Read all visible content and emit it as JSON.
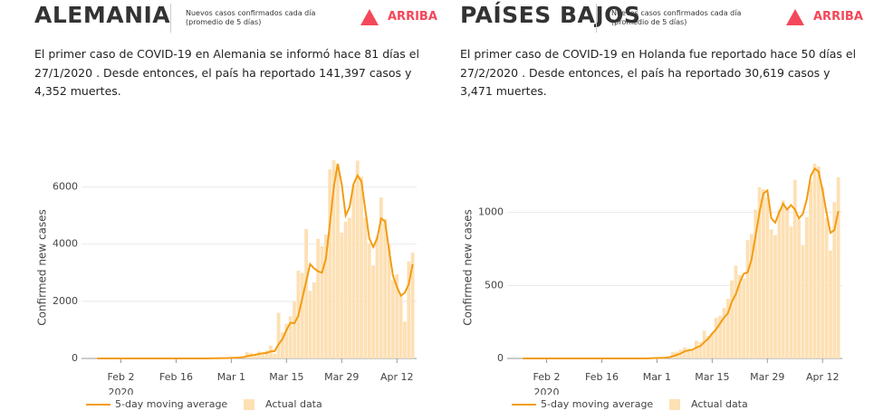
{
  "chart_data": [
    {
      "type": "bar",
      "title": "ALEMANIA",
      "subtitle": "Nuevos casos confirmados cada día (promedio de 5 días)",
      "trend": "ARRIBA",
      "trend_color": "#f4475a",
      "description": "El primer caso de COVID-19 en Alemania se informó hace 81 días el 27/1/2020 . Desde entonces, el país ha reportado 141,397 casos y 4,352 muertes.",
      "y_label": "Confirmed new cases",
      "x_year_label": "2020",
      "x": [
        "2020-01-27",
        "2020-01-28",
        "2020-01-29",
        "2020-01-30",
        "2020-01-31",
        "2020-02-01",
        "2020-02-02",
        "2020-02-03",
        "2020-02-04",
        "2020-02-05",
        "2020-02-06",
        "2020-02-07",
        "2020-02-08",
        "2020-02-09",
        "2020-02-10",
        "2020-02-11",
        "2020-02-12",
        "2020-02-13",
        "2020-02-14",
        "2020-02-15",
        "2020-02-16",
        "2020-02-17",
        "2020-02-18",
        "2020-02-19",
        "2020-02-20",
        "2020-02-21",
        "2020-02-22",
        "2020-02-23",
        "2020-02-24",
        "2020-02-25",
        "2020-02-26",
        "2020-02-27",
        "2020-02-28",
        "2020-02-29",
        "2020-03-01",
        "2020-03-02",
        "2020-03-03",
        "2020-03-04",
        "2020-03-05",
        "2020-03-06",
        "2020-03-07",
        "2020-03-08",
        "2020-03-09",
        "2020-03-10",
        "2020-03-11",
        "2020-03-12",
        "2020-03-13",
        "2020-03-14",
        "2020-03-15",
        "2020-03-16",
        "2020-03-17",
        "2020-03-18",
        "2020-03-19",
        "2020-03-20",
        "2020-03-21",
        "2020-03-22",
        "2020-03-23",
        "2020-03-24",
        "2020-03-25",
        "2020-03-26",
        "2020-03-27",
        "2020-03-28",
        "2020-03-29",
        "2020-03-30",
        "2020-03-31",
        "2020-04-01",
        "2020-04-02",
        "2020-04-03",
        "2020-04-04",
        "2020-04-05",
        "2020-04-06",
        "2020-04-07",
        "2020-04-08",
        "2020-04-09",
        "2020-04-10",
        "2020-04-11",
        "2020-04-12",
        "2020-04-13",
        "2020-04-14",
        "2020-04-15",
        "2020-04-16"
      ],
      "series": [
        {
          "name": "5-day moving average",
          "type": "line",
          "color": "#f39c12",
          "values": [
            1,
            1,
            1,
            1,
            1,
            1,
            1,
            1,
            1,
            1,
            1,
            1,
            0,
            0,
            0,
            0,
            0,
            0,
            0,
            0,
            0,
            0,
            0,
            0,
            0,
            0,
            0,
            0,
            0,
            3,
            6,
            8,
            13,
            13,
            21,
            25,
            30,
            43,
            81,
            108,
            128,
            157,
            183,
            195,
            246,
            256,
            500,
            680,
            1000,
            1250,
            1230,
            1500,
            2100,
            2700,
            3300,
            3150,
            3050,
            3000,
            3500,
            4700,
            6000,
            6800,
            6100,
            5000,
            5300,
            6100,
            6400,
            6200,
            5200,
            4200,
            3900,
            4200,
            4900,
            4800,
            3800,
            2900,
            2500,
            2200,
            2300,
            2600,
            3300
          ]
        },
        {
          "name": "Actual data",
          "type": "bar",
          "color": "#fde0b4",
          "values": [
            1,
            3,
            0,
            0,
            1,
            1,
            2,
            2,
            0,
            0,
            1,
            1,
            0,
            0,
            0,
            2,
            0,
            0,
            0,
            0,
            0,
            0,
            0,
            0,
            0,
            0,
            0,
            0,
            0,
            1,
            10,
            19,
            2,
            31,
            51,
            29,
            37,
            66,
            220,
            188,
            129,
            241,
            136,
            281,
            451,
            170,
            1597,
            910,
            1210,
            1477,
            1985,
            3070,
            2993,
            4528,
            2365,
            2660,
            4183,
            3930,
            4337,
            6615,
            6933,
            6824,
            4400,
            4790,
            4923,
            6064,
            6922,
            6365,
            4933,
            4031,
            3251,
            4289,
            5633,
            4885,
            3990,
            2737,
            2946,
            2218,
            1287,
            3394,
            3699
          ]
        }
      ],
      "xlim": [
        "2020-01-23",
        "2020-04-17"
      ],
      "xticks": [
        {
          "value": "2020-02-02",
          "label": "Feb 2"
        },
        {
          "value": "2020-02-16",
          "label": "Feb 16"
        },
        {
          "value": "2020-03-01",
          "label": "Mar 1"
        },
        {
          "value": "2020-03-15",
          "label": "Mar 15"
        },
        {
          "value": "2020-03-29",
          "label": "Mar 29"
        },
        {
          "value": "2020-04-12",
          "label": "Apr 12"
        }
      ],
      "ylim": [
        0,
        7000
      ],
      "yticks": [
        0,
        2000,
        4000,
        6000
      ],
      "grid": true
    },
    {
      "type": "bar",
      "title": "PAÍSES BAJOS",
      "subtitle": "Nuevos casos confirmados cada día (promedio de 5 días)",
      "trend": "ARRIBA",
      "trend_color": "#f4475a",
      "description": "El primer caso de COVID-19 en Holanda fue reportado hace 50 días el 27/2/2020 . Desde entonces, el país ha reportado 30,619 casos y 3,471 muertes.",
      "y_label": "Confirmed new cases",
      "x_year_label": "2020",
      "x": [
        "2020-01-27",
        "2020-01-28",
        "2020-01-29",
        "2020-01-30",
        "2020-01-31",
        "2020-02-01",
        "2020-02-02",
        "2020-02-03",
        "2020-02-04",
        "2020-02-05",
        "2020-02-06",
        "2020-02-07",
        "2020-02-08",
        "2020-02-09",
        "2020-02-10",
        "2020-02-11",
        "2020-02-12",
        "2020-02-13",
        "2020-02-14",
        "2020-02-15",
        "2020-02-16",
        "2020-02-17",
        "2020-02-18",
        "2020-02-19",
        "2020-02-20",
        "2020-02-21",
        "2020-02-22",
        "2020-02-23",
        "2020-02-24",
        "2020-02-25",
        "2020-02-26",
        "2020-02-27",
        "2020-02-28",
        "2020-02-29",
        "2020-03-01",
        "2020-03-02",
        "2020-03-03",
        "2020-03-04",
        "2020-03-05",
        "2020-03-06",
        "2020-03-07",
        "2020-03-08",
        "2020-03-09",
        "2020-03-10",
        "2020-03-11",
        "2020-03-12",
        "2020-03-13",
        "2020-03-14",
        "2020-03-15",
        "2020-03-16",
        "2020-03-17",
        "2020-03-18",
        "2020-03-19",
        "2020-03-20",
        "2020-03-21",
        "2020-03-22",
        "2020-03-23",
        "2020-03-24",
        "2020-03-25",
        "2020-03-26",
        "2020-03-27",
        "2020-03-28",
        "2020-03-29",
        "2020-03-30",
        "2020-03-31",
        "2020-04-01",
        "2020-04-02",
        "2020-04-03",
        "2020-04-04",
        "2020-04-05",
        "2020-04-06",
        "2020-04-07",
        "2020-04-08",
        "2020-04-09",
        "2020-04-10",
        "2020-04-11",
        "2020-04-12",
        "2020-04-13",
        "2020-04-14",
        "2020-04-15",
        "2020-04-16"
      ],
      "series": [
        {
          "name": "5-day moving average",
          "type": "line",
          "color": "#f39c12",
          "values": [
            0,
            0,
            0,
            0,
            0,
            0,
            0,
            0,
            0,
            0,
            0,
            0,
            0,
            0,
            0,
            0,
            0,
            0,
            0,
            0,
            0,
            0,
            0,
            0,
            0,
            0,
            0,
            0,
            0,
            0,
            0,
            0,
            1,
            2,
            3,
            4,
            5,
            7,
            15,
            24,
            34,
            48,
            57,
            60,
            75,
            85,
            112,
            135,
            170,
            200,
            240,
            280,
            310,
            390,
            440,
            520,
            580,
            590,
            680,
            840,
            1000,
            1130,
            1150,
            960,
            930,
            1000,
            1060,
            1020,
            1050,
            1020,
            960,
            990,
            1090,
            1250,
            1300,
            1280,
            1150,
            1000,
            860,
            880,
            1010
          ]
        },
        {
          "name": "Actual data",
          "type": "bar",
          "color": "#fde0b4",
          "values": [
            0,
            0,
            0,
            0,
            0,
            0,
            0,
            0,
            0,
            0,
            0,
            0,
            0,
            0,
            0,
            0,
            0,
            0,
            0,
            0,
            0,
            0,
            0,
            0,
            0,
            0,
            0,
            0,
            0,
            0,
            0,
            1,
            1,
            4,
            4,
            8,
            6,
            14,
            44,
            46,
            60,
            77,
            56,
            61,
            121,
            111,
            190,
            155,
            176,
            278,
            292,
            346,
            409,
            534,
            637,
            573,
            545,
            811,
            852,
            1019,
            1172,
            1159,
            1104,
            884,
            845,
            1019,
            1083,
            1026,
            904,
            1224,
            952,
            777,
            969,
            1213,
            1335,
            1316,
            1174,
            964,
            740,
            1070,
            1240
          ]
        }
      ],
      "xlim": [
        "2020-01-23",
        "2020-04-17"
      ],
      "xticks": [
        {
          "value": "2020-02-02",
          "label": "Feb 2"
        },
        {
          "value": "2020-02-16",
          "label": "Feb 16"
        },
        {
          "value": "2020-03-01",
          "label": "Mar 1"
        },
        {
          "value": "2020-03-15",
          "label": "Mar 15"
        },
        {
          "value": "2020-03-29",
          "label": "Mar 29"
        },
        {
          "value": "2020-04-12",
          "label": "Apr 12"
        }
      ],
      "ylim": [
        0,
        1370
      ],
      "yticks": [
        0,
        500,
        1000
      ],
      "grid": true
    }
  ]
}
